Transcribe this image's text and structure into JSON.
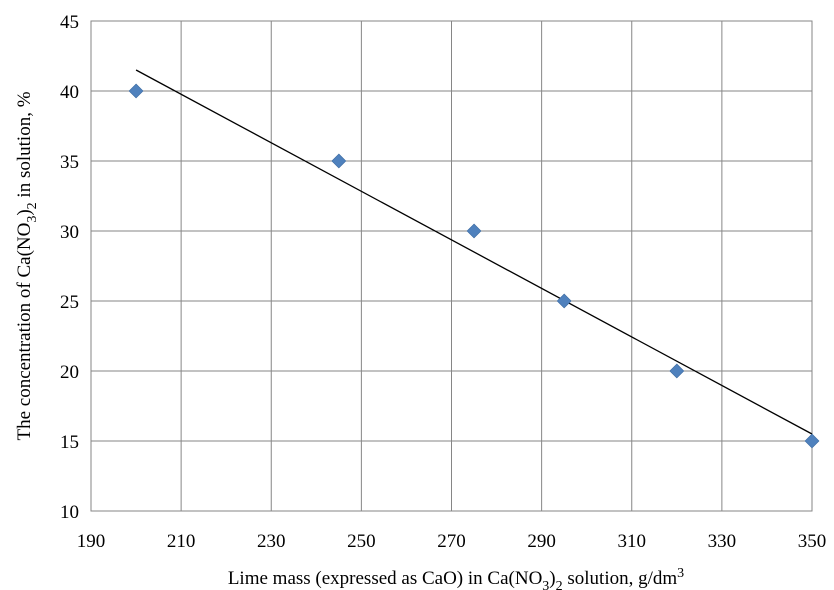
{
  "chart_data": {
    "type": "scatter",
    "xlim": [
      190,
      350
    ],
    "ylim": [
      10,
      45
    ],
    "x_ticks": [
      190,
      210,
      230,
      250,
      270,
      290,
      310,
      330,
      350
    ],
    "y_ticks": [
      10,
      15,
      20,
      25,
      30,
      35,
      40,
      45
    ],
    "grid": true,
    "legend": "none",
    "xlabel": {
      "before_sub1": "Lime mass (expressed as CaO) in Ca(NO",
      "sub1": "3",
      "between": ")",
      "sub2": "2",
      "after_sub2": " solution, g/dm",
      "sup": "3"
    },
    "ylabel": {
      "before_sub1": "The concentration of Ca(NO",
      "sub1": "3",
      "between": ")",
      "sub2": "2",
      "after_sub2": " in solution, %"
    },
    "series": [
      {
        "marker": "diamond",
        "color": "#4F81BD",
        "points": [
          {
            "x": 200,
            "y": 40
          },
          {
            "x": 245,
            "y": 35
          },
          {
            "x": 275,
            "y": 30
          },
          {
            "x": 295,
            "y": 25
          },
          {
            "x": 320,
            "y": 20
          },
          {
            "x": 350,
            "y": 15
          }
        ]
      }
    ],
    "trendline": {
      "type": "linear",
      "color": "#000000",
      "from": {
        "x": 200,
        "y": 41.5
      },
      "to": {
        "x": 350,
        "y": 15.5
      }
    }
  }
}
